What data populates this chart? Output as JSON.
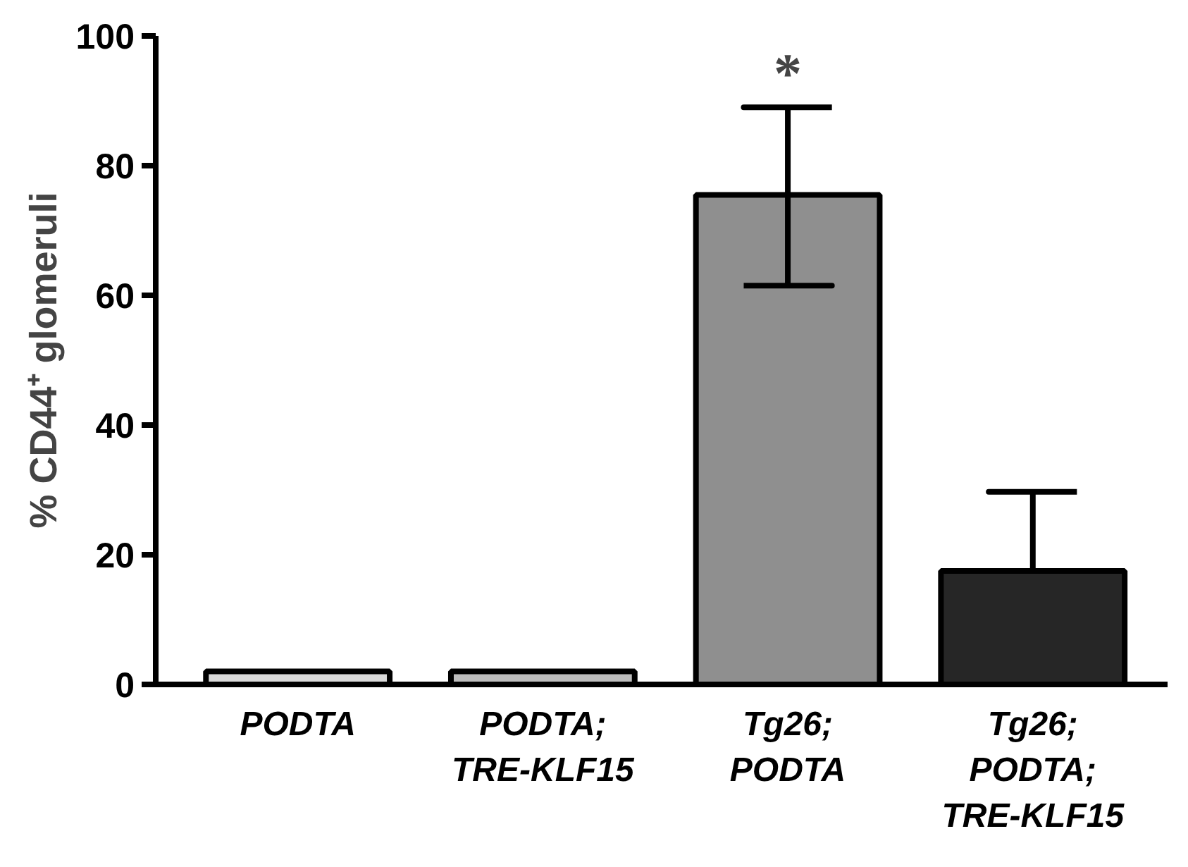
{
  "chart_data": {
    "type": "bar",
    "ylabel": "% CD44⁺ glomeruli",
    "categories": [
      "PODTA",
      "PODTA;\nTRE-KLF15",
      "Tg26;\nPODTA",
      "Tg26;\nPODTA;\nTRE-KLF15"
    ],
    "values": [
      2,
      2,
      75.5,
      17.5
    ],
    "colors": [
      "#d9d9d9",
      "#bdbdbd",
      "#8f8f8f",
      "#262626"
    ],
    "errors": [
      null,
      null,
      [
        61.5,
        89
      ],
      [
        17.5,
        29.7
      ]
    ],
    "ylim": [
      0,
      100
    ],
    "yticks": [
      0,
      20,
      40,
      60,
      80,
      100
    ],
    "grid": false,
    "annotations": [
      "*"
    ]
  }
}
